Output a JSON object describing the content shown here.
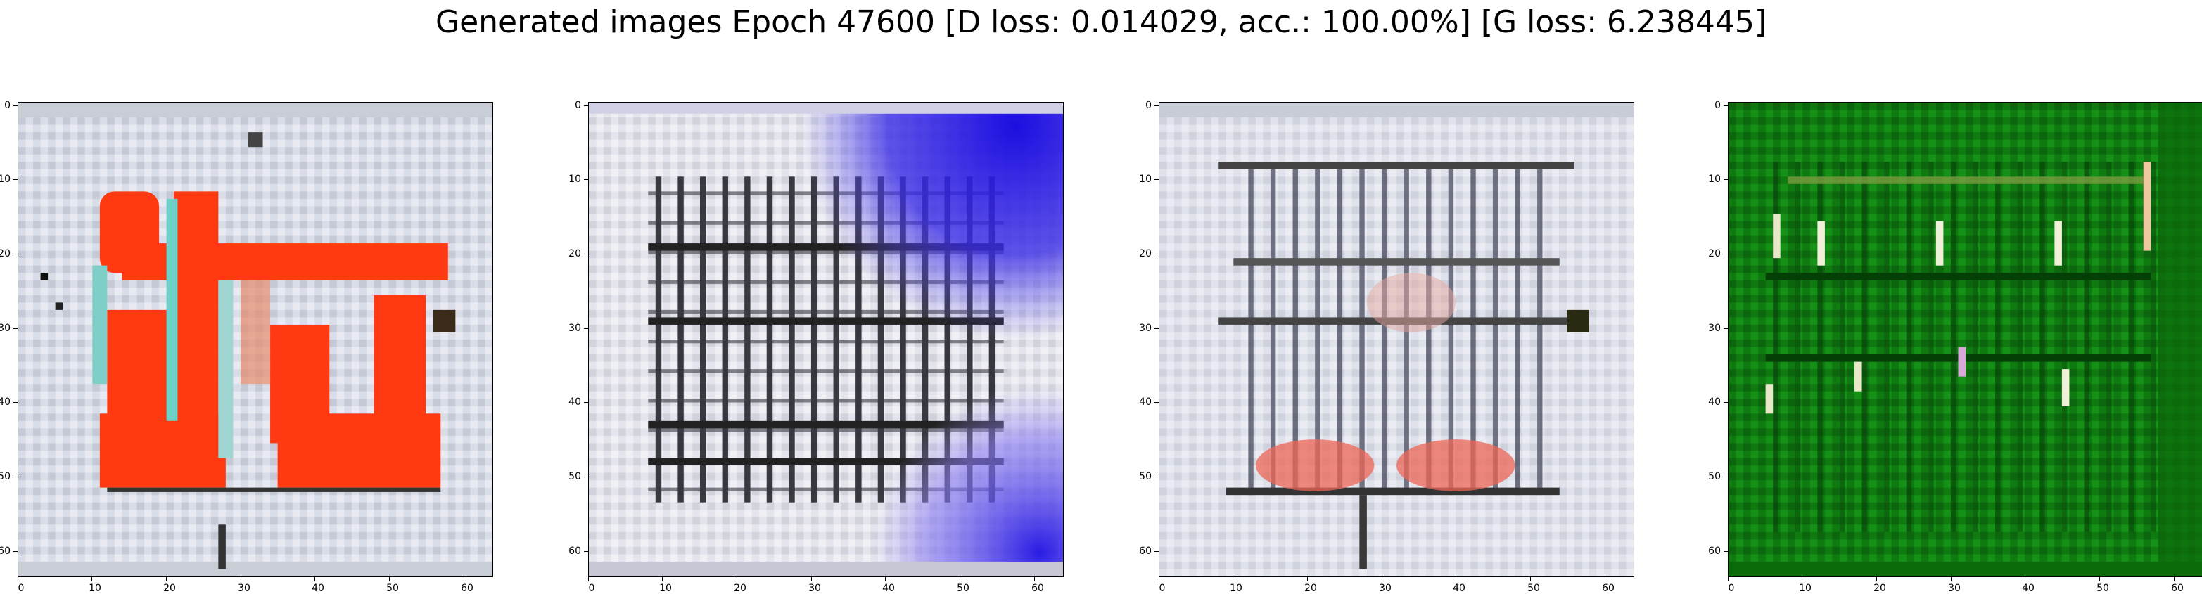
{
  "figure": {
    "title": "Generated images Epoch 47600 [D loss: 0.014029, acc.: 100.00%] [G loss: 6.238445]"
  },
  "axes": {
    "x_ticks": [
      "0",
      "10",
      "20",
      "30",
      "40",
      "50",
      "60"
    ],
    "y_ticks": [
      "0",
      "10",
      "20",
      "30",
      "40",
      "50",
      "60"
    ],
    "range": [
      0,
      64
    ]
  },
  "panels": [
    {
      "name": "generated-image-1",
      "dominant_color": "#ff3a12",
      "background_color": "#d9dde8"
    },
    {
      "name": "generated-image-2",
      "dominant_color": "#2a16e0",
      "background_color": "#e3e4ec"
    },
    {
      "name": "generated-image-3",
      "dominant_color": "#ee6655",
      "background_color": "#dfe2ea"
    },
    {
      "name": "generated-image-4",
      "dominant_color": "#0a8a0a",
      "background_color": "#0f7a10"
    }
  ]
}
